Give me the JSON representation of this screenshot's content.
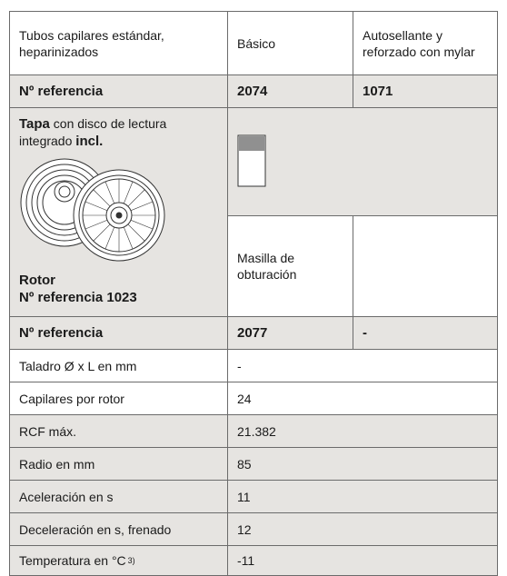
{
  "table": {
    "header": [
      "Tubos capilares estándar, heparinizados",
      "Básico",
      "Autosellante y reforzado con mylar"
    ],
    "ref_row": [
      "Nº referencia",
      "2074",
      "1071"
    ],
    "rotor": {
      "lid": [
        "Tapa",
        " con disco de lectura integrado ",
        "incl."
      ],
      "name": "Rotor",
      "ref": "Nº referencia 1023",
      "seal": "Masilla de obturación"
    },
    "ref_row_2": [
      "Nº referencia",
      "2077",
      "-"
    ],
    "rows": [
      [
        "Taladro Ø x L en mm",
        "-"
      ],
      [
        "Capilares por rotor",
        "24"
      ],
      [
        "RCF máx.",
        "21.382"
      ],
      [
        "Radio en mm",
        "85"
      ],
      [
        "Aceleración en s",
        "11"
      ],
      [
        "Deceleración en s, frenado",
        "12"
      ],
      [
        "Temperatura en °C",
        "-11"
      ]
    ],
    "temperature_note": "3)"
  }
}
